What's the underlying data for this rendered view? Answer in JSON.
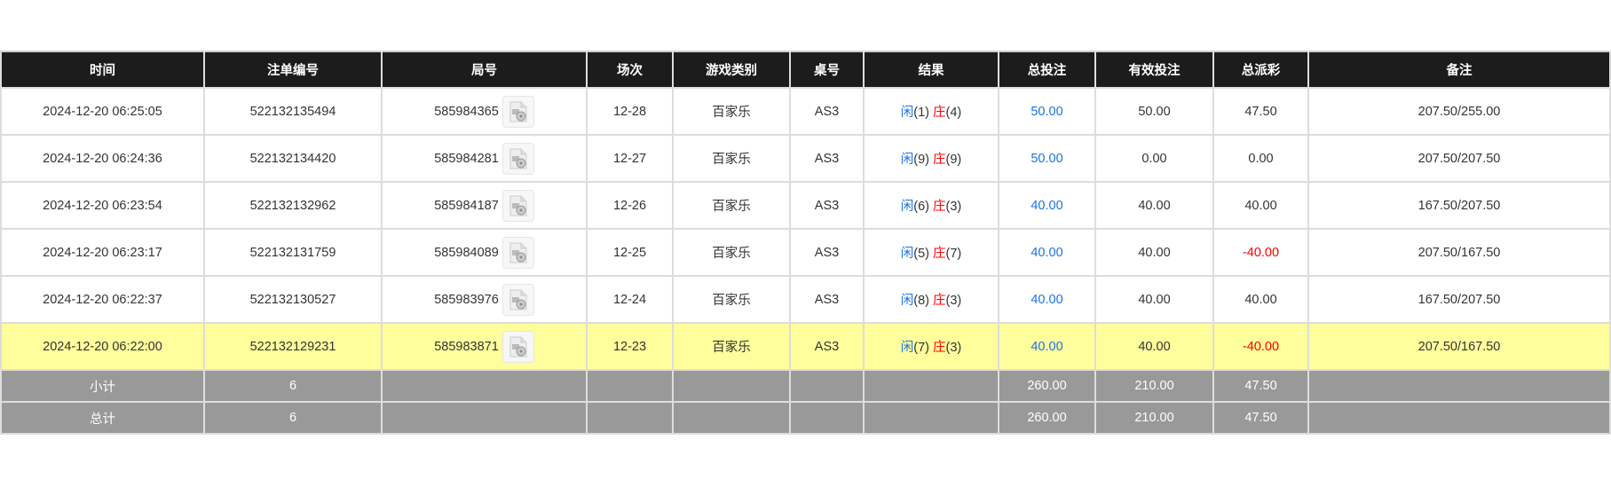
{
  "headers": [
    "时间",
    "注单编号",
    "局号",
    "场次",
    "游戏类别",
    "桌号",
    "结果",
    "总投注",
    "有效投注",
    "总派彩",
    "备注"
  ],
  "rows": [
    {
      "time": "2024-12-20 06:25:05",
      "bet_id": "522132135494",
      "round": "585984365",
      "session": "12-28",
      "game": "百家乐",
      "table": "AS3",
      "player": "闲",
      "player_val": "(1)",
      "banker": "庄",
      "banker_val": "(4)",
      "total_bet": "50.00",
      "valid_bet": "50.00",
      "payout": "47.50",
      "payout_negative": false,
      "note": "207.50/255.00"
    },
    {
      "time": "2024-12-20 06:24:36",
      "bet_id": "522132134420",
      "round": "585984281",
      "session": "12-27",
      "game": "百家乐",
      "table": "AS3",
      "player": "闲",
      "player_val": "(9)",
      "banker": "庄",
      "banker_val": "(9)",
      "total_bet": "50.00",
      "valid_bet": "0.00",
      "payout": "0.00",
      "payout_negative": false,
      "note": "207.50/207.50"
    },
    {
      "time": "2024-12-20 06:23:54",
      "bet_id": "522132132962",
      "round": "585984187",
      "session": "12-26",
      "game": "百家乐",
      "table": "AS3",
      "player": "闲",
      "player_val": "(6)",
      "banker": "庄",
      "banker_val": "(3)",
      "total_bet": "40.00",
      "valid_bet": "40.00",
      "payout": "40.00",
      "payout_negative": false,
      "note": "167.50/207.50"
    },
    {
      "time": "2024-12-20 06:23:17",
      "bet_id": "522132131759",
      "round": "585984089",
      "session": "12-25",
      "game": "百家乐",
      "table": "AS3",
      "player": "闲",
      "player_val": "(5)",
      "banker": "庄",
      "banker_val": "(7)",
      "total_bet": "40.00",
      "valid_bet": "40.00",
      "payout": "-40.00",
      "payout_negative": true,
      "note": "207.50/167.50"
    },
    {
      "time": "2024-12-20 06:22:37",
      "bet_id": "522132130527",
      "round": "585983976",
      "session": "12-24",
      "game": "百家乐",
      "table": "AS3",
      "player": "闲",
      "player_val": "(8)",
      "banker": "庄",
      "banker_val": "(3)",
      "total_bet": "40.00",
      "valid_bet": "40.00",
      "payout": "40.00",
      "payout_negative": false,
      "note": "167.50/207.50"
    },
    {
      "time": "2024-12-20 06:22:00",
      "bet_id": "522132129231",
      "round": "585983871",
      "session": "12-23",
      "game": "百家乐",
      "table": "AS3",
      "player": "闲",
      "player_val": "(7)",
      "banker": "庄",
      "banker_val": "(3)",
      "total_bet": "40.00",
      "valid_bet": "40.00",
      "payout": "-40.00",
      "payout_negative": true,
      "note": "207.50/167.50",
      "highlighted": true
    }
  ],
  "summary": [
    {
      "label": "小计",
      "count": "6",
      "total_bet": "260.00",
      "valid_bet": "210.00",
      "payout": "47.50"
    },
    {
      "label": "总计",
      "count": "6",
      "total_bet": "260.00",
      "valid_bet": "210.00",
      "payout": "47.50"
    }
  ],
  "icons": {
    "round_video": "video-file-icon"
  },
  "colors": {
    "header_bg": "#1c1c1c",
    "highlight_row": "#fefe9c",
    "summary_bg": "#999999",
    "player": "#1a73e8",
    "banker": "#ff0000",
    "negative": "#ff0000"
  }
}
